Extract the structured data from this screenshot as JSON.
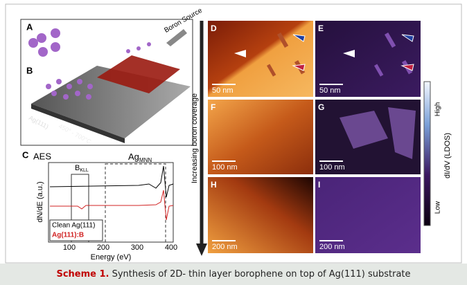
{
  "figure": {
    "panel_labels": [
      "A",
      "B",
      "C",
      "D",
      "E",
      "F",
      "G",
      "H",
      "I"
    ],
    "schematic": {
      "source": "Boron Source",
      "substrate": "Ag(111)",
      "temperature": "450° - 700°C"
    },
    "aes": {
      "title": "AES",
      "b_region": "B",
      "b_sub": "KLL",
      "ag_region": "Ag",
      "ag_sub": "MNN",
      "y_label": "dN/dE (a.u.)",
      "x_label": "Energy (eV)",
      "x_ticks": [
        "100",
        "200",
        "300",
        "400"
      ],
      "legend": [
        "Clean Ag(111)",
        "Ag(111):B"
      ]
    },
    "scale_bars": [
      "50 nm",
      "50 nm",
      "100 nm",
      "100 nm",
      "200 nm",
      "200 nm"
    ],
    "arrow_label": "Increasing boron coverage",
    "colorbar": {
      "high": "High",
      "low": "Low",
      "label": "dI/dV (LDOS)"
    }
  },
  "caption": {
    "label": "Scheme 1.",
    "text": " Synthesis of 2D- thin layer borophene on top of Ag(111) substrate"
  }
}
